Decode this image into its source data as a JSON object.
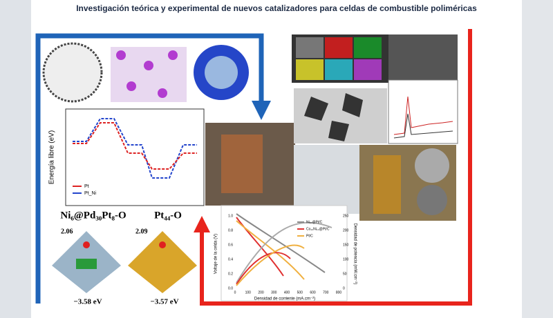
{
  "title": "Investigación teórica y experimental de nuevos catalizadores para celdas de combustible poliméricas",
  "energy_panel": {
    "ylabel": "Energía libre (eV)",
    "legend": [
      "Pt",
      "Pt_Ni"
    ]
  },
  "cell_panel": {
    "ylabel": "Voltaje de la celda (V)",
    "y2label": "Densidad de potencia (mW.cm⁻²)",
    "xlabel": "Densidad de corriente (mA.cm⁻²)",
    "legend": [
      "Ni₁₀@Pt/C",
      "Co₁₀Ni₁₀@Pt/C",
      "Pt/C"
    ],
    "xticks": [
      "0",
      "100",
      "200",
      "300",
      "400",
      "500",
      "600",
      "700",
      "800"
    ],
    "yticks": [
      "0.0",
      "0.2",
      "0.4",
      "0.6",
      "0.8",
      "1.0"
    ],
    "y2ticks": [
      "0",
      "50",
      "100",
      "150",
      "200",
      "250"
    ]
  },
  "clusters": [
    {
      "formula": "Ni₆@Pd₃₀Pt₈-O",
      "bond": "2.06",
      "energy": "−3.58 eV"
    },
    {
      "formula": "Pt₄₄-O",
      "bond": "2.09",
      "energy": "−3.57 eV"
    }
  ]
}
